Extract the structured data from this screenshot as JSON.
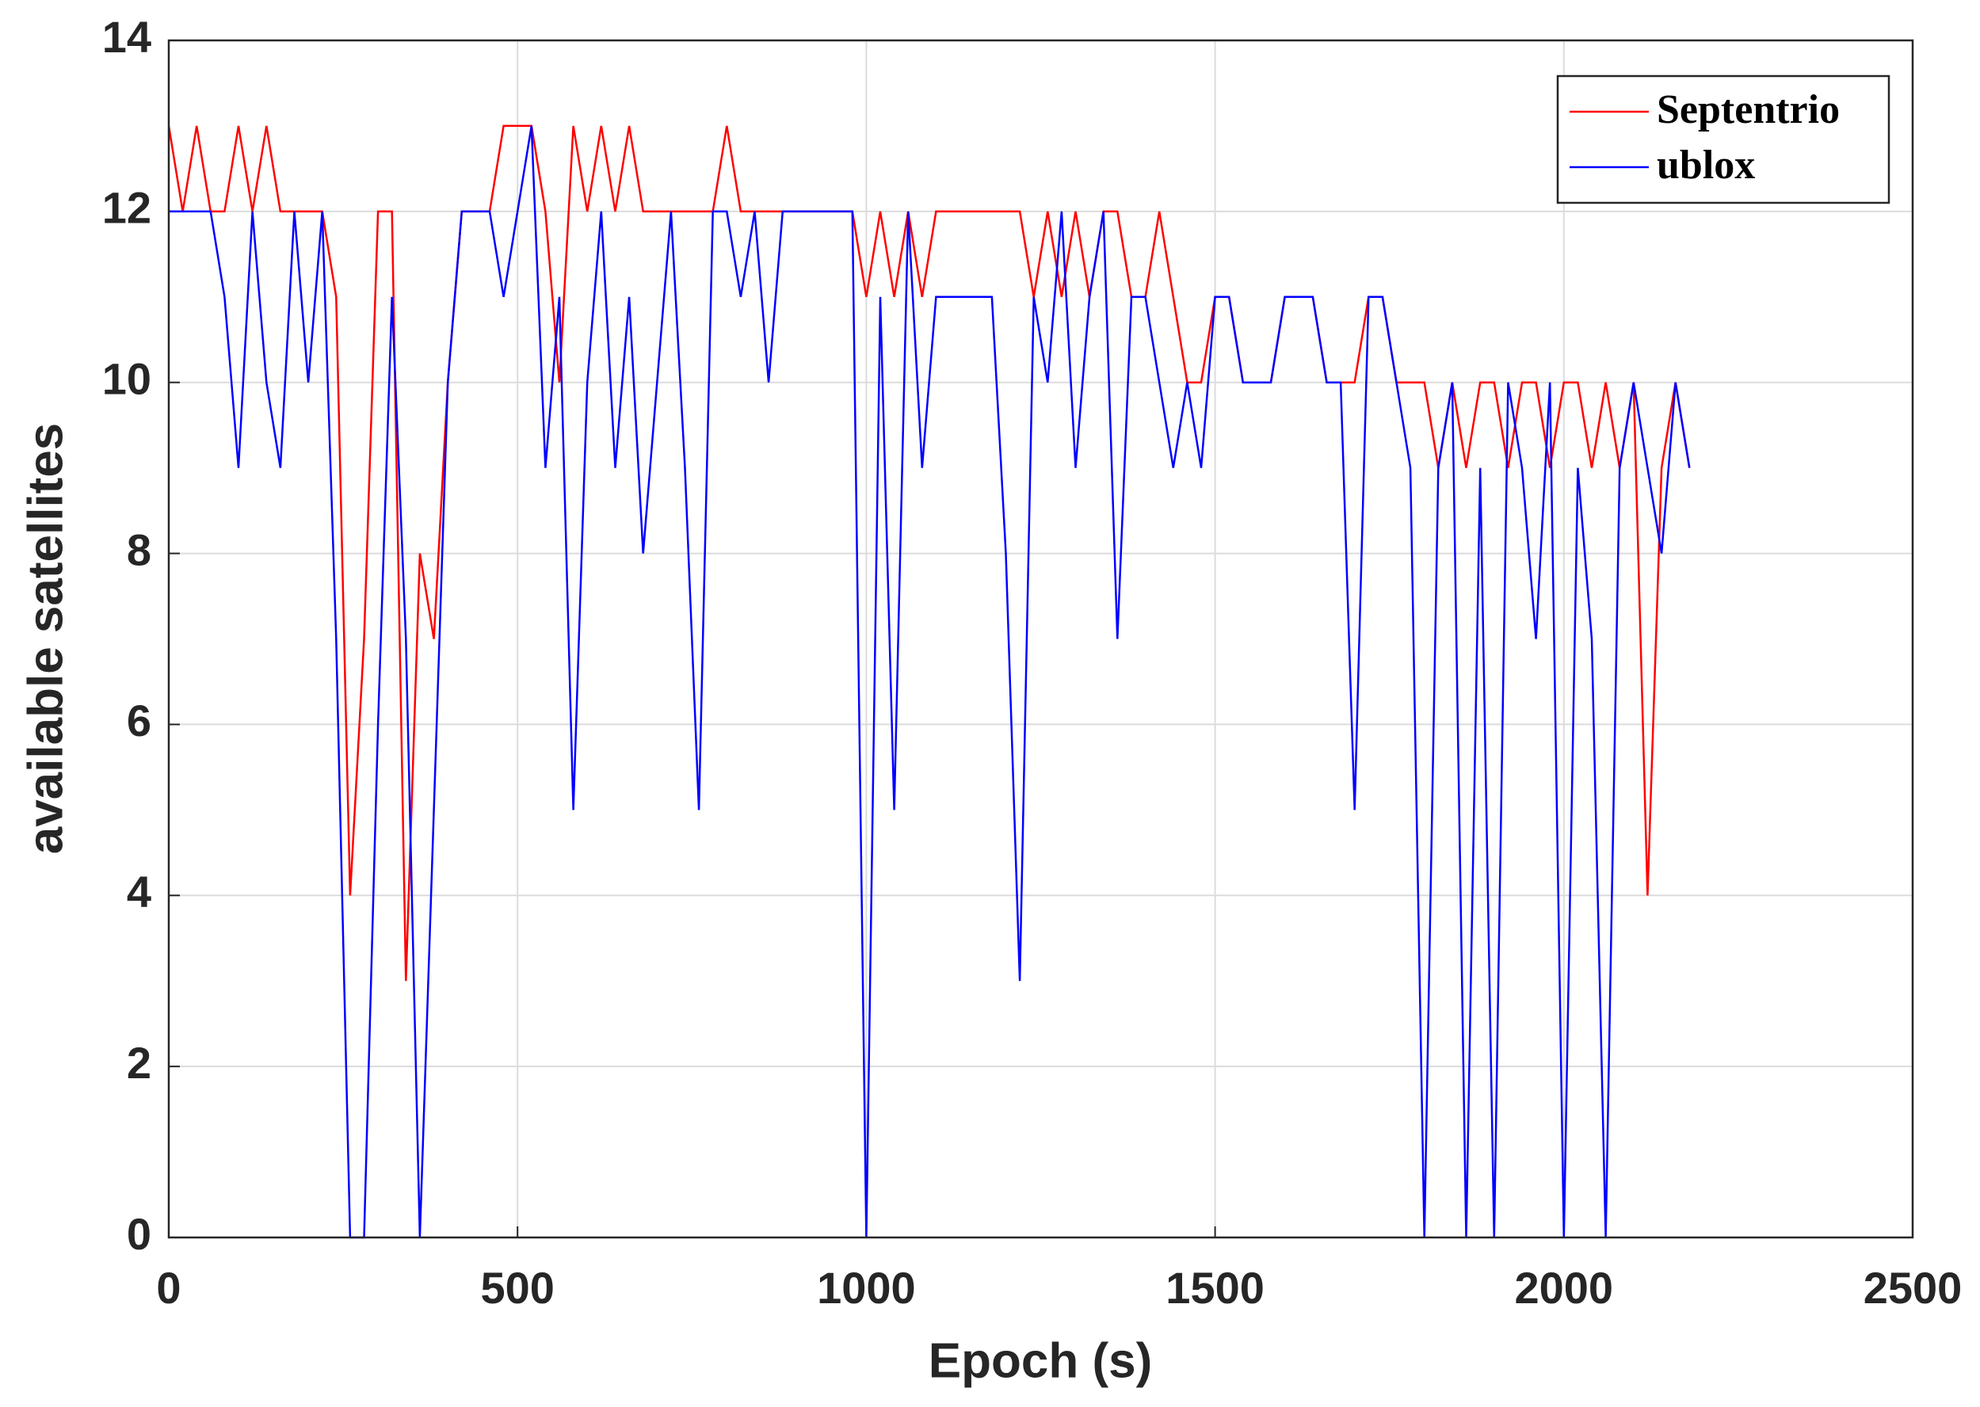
{
  "chart_data": {
    "type": "line",
    "xlabel": "Epoch (s)",
    "ylabel": "available satellites",
    "x": [
      0,
      20,
      40,
      60,
      80,
      100,
      120,
      140,
      160,
      180,
      200,
      220,
      240,
      260,
      280,
      300,
      320,
      340,
      360,
      380,
      400,
      420,
      440,
      460,
      480,
      500,
      520,
      540,
      560,
      580,
      600,
      620,
      640,
      660,
      680,
      700,
      720,
      740,
      760,
      780,
      800,
      820,
      840,
      860,
      880,
      900,
      920,
      940,
      960,
      980,
      1000,
      1020,
      1040,
      1060,
      1080,
      1100,
      1120,
      1140,
      1160,
      1180,
      1200,
      1220,
      1240,
      1260,
      1280,
      1300,
      1320,
      1340,
      1360,
      1380,
      1400,
      1420,
      1440,
      1460,
      1480,
      1500,
      1520,
      1540,
      1560,
      1580,
      1600,
      1620,
      1640,
      1660,
      1680,
      1700,
      1720,
      1740,
      1760,
      1780,
      1800,
      1820,
      1840,
      1860,
      1880,
      1900,
      1920,
      1940,
      1960,
      1980,
      2000,
      2020,
      2040,
      2060,
      2080,
      2100,
      2120,
      2140,
      2160,
      2180
    ],
    "series": [
      {
        "name": "Septentrio",
        "color": "#ff0000",
        "values": [
          13,
          12,
          13,
          12,
          12,
          13,
          12,
          13,
          12,
          12,
          12,
          12,
          11,
          4,
          7,
          12,
          12,
          3,
          8,
          7,
          10,
          12,
          12,
          12,
          13,
          13,
          13,
          12,
          10,
          13,
          12,
          13,
          12,
          13,
          12,
          12,
          12,
          12,
          12,
          12,
          13,
          12,
          12,
          12,
          12,
          12,
          12,
          12,
          12,
          12,
          11,
          12,
          11,
          12,
          11,
          12,
          12,
          12,
          12,
          12,
          12,
          12,
          11,
          12,
          11,
          12,
          11,
          12,
          12,
          11,
          11,
          12,
          11,
          10,
          10,
          11,
          11,
          10,
          10,
          10,
          11,
          11,
          11,
          10,
          10,
          10,
          11,
          11,
          10,
          10,
          10,
          9,
          10,
          9,
          10,
          10,
          9,
          10,
          10,
          9,
          10,
          10,
          9,
          10,
          9,
          10,
          4,
          9,
          10,
          9
        ]
      },
      {
        "name": "ublox",
        "color": "#0000ff",
        "values": [
          12,
          12,
          12,
          12,
          11,
          9,
          12,
          10,
          9,
          12,
          10,
          12,
          7,
          0,
          0,
          6,
          11,
          7,
          0,
          5,
          10,
          12,
          12,
          12,
          11,
          12,
          13,
          9,
          11,
          5,
          10,
          12,
          9,
          11,
          8,
          10,
          12,
          9,
          5,
          12,
          12,
          11,
          12,
          10,
          12,
          12,
          12,
          12,
          12,
          12,
          0,
          11,
          5,
          12,
          9,
          11,
          11,
          11,
          11,
          11,
          8,
          3,
          11,
          10,
          12,
          9,
          11,
          12,
          7,
          11,
          11,
          10,
          9,
          10,
          9,
          11,
          11,
          10,
          10,
          10,
          11,
          11,
          11,
          10,
          10,
          5,
          11,
          11,
          10,
          9,
          0,
          9,
          10,
          0,
          9,
          0,
          10,
          9,
          7,
          10,
          0,
          9,
          7,
          0,
          9,
          10,
          9,
          8,
          10,
          9
        ]
      }
    ],
    "xlim": [
      0,
      2500
    ],
    "xticks": [
      0,
      500,
      1000,
      1500,
      2000,
      2500
    ],
    "ylim": [
      0,
      14
    ],
    "yticks": [
      0,
      2,
      4,
      6,
      8,
      10,
      12,
      14
    ],
    "grid": true,
    "legend": "upper-right"
  }
}
